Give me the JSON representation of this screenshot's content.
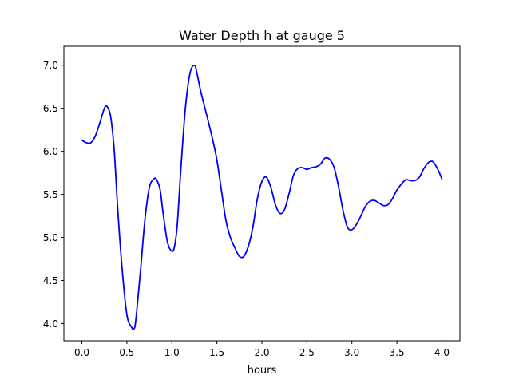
{
  "chart_data": {
    "type": "line",
    "title": "Water Depth h at gauge 5",
    "xlabel": "hours",
    "ylabel": "",
    "xlim": [
      -0.2,
      4.2
    ],
    "ylim": [
      3.8,
      7.22
    ],
    "xticks": [
      0.0,
      0.5,
      1.0,
      1.5,
      2.0,
      2.5,
      3.0,
      3.5,
      4.0
    ],
    "xtick_labels": [
      "0.0",
      "0.5",
      "1.0",
      "1.5",
      "2.0",
      "2.5",
      "3.0",
      "3.5",
      "4.0"
    ],
    "yticks": [
      4.0,
      4.5,
      5.0,
      5.5,
      6.0,
      6.5,
      7.0
    ],
    "ytick_labels": [
      "4.0",
      "4.5",
      "5.0",
      "5.5",
      "6.0",
      "6.5",
      "7.0"
    ],
    "grid": false,
    "legend": "none",
    "series": [
      {
        "color": "#0000ff",
        "x": [
          0.0,
          0.05,
          0.1,
          0.15,
          0.2,
          0.25,
          0.28,
          0.32,
          0.36,
          0.4,
          0.45,
          0.5,
          0.55,
          0.58,
          0.6,
          0.65,
          0.7,
          0.75,
          0.8,
          0.83,
          0.87,
          0.9,
          0.95,
          1.0,
          1.03,
          1.06,
          1.1,
          1.15,
          1.2,
          1.25,
          1.28,
          1.32,
          1.38,
          1.45,
          1.5,
          1.55,
          1.6,
          1.65,
          1.7,
          1.75,
          1.8,
          1.85,
          1.9,
          1.95,
          2.0,
          2.05,
          2.1,
          2.15,
          2.2,
          2.25,
          2.3,
          2.35,
          2.4,
          2.45,
          2.5,
          2.55,
          2.6,
          2.65,
          2.7,
          2.75,
          2.8,
          2.85,
          2.9,
          2.95,
          3.0,
          3.05,
          3.1,
          3.15,
          3.2,
          3.25,
          3.3,
          3.35,
          3.4,
          3.45,
          3.5,
          3.55,
          3.6,
          3.65,
          3.7,
          3.75,
          3.8,
          3.85,
          3.9,
          3.95,
          4.0
        ],
        "y": [
          6.13,
          6.1,
          6.1,
          6.18,
          6.33,
          6.5,
          6.52,
          6.4,
          6.0,
          5.3,
          4.6,
          4.1,
          3.96,
          3.94,
          4.05,
          4.6,
          5.2,
          5.58,
          5.68,
          5.67,
          5.55,
          5.3,
          4.95,
          4.84,
          4.9,
          5.15,
          5.8,
          6.5,
          6.9,
          7.0,
          6.9,
          6.7,
          6.45,
          6.15,
          5.9,
          5.55,
          5.2,
          5.0,
          4.88,
          4.78,
          4.78,
          4.9,
          5.12,
          5.45,
          5.65,
          5.7,
          5.58,
          5.38,
          5.28,
          5.32,
          5.5,
          5.72,
          5.8,
          5.81,
          5.79,
          5.81,
          5.82,
          5.85,
          5.92,
          5.91,
          5.82,
          5.6,
          5.32,
          5.12,
          5.09,
          5.15,
          5.25,
          5.36,
          5.42,
          5.43,
          5.4,
          5.37,
          5.38,
          5.45,
          5.55,
          5.62,
          5.67,
          5.66,
          5.66,
          5.7,
          5.8,
          5.87,
          5.88,
          5.8,
          5.68
        ]
      }
    ]
  }
}
